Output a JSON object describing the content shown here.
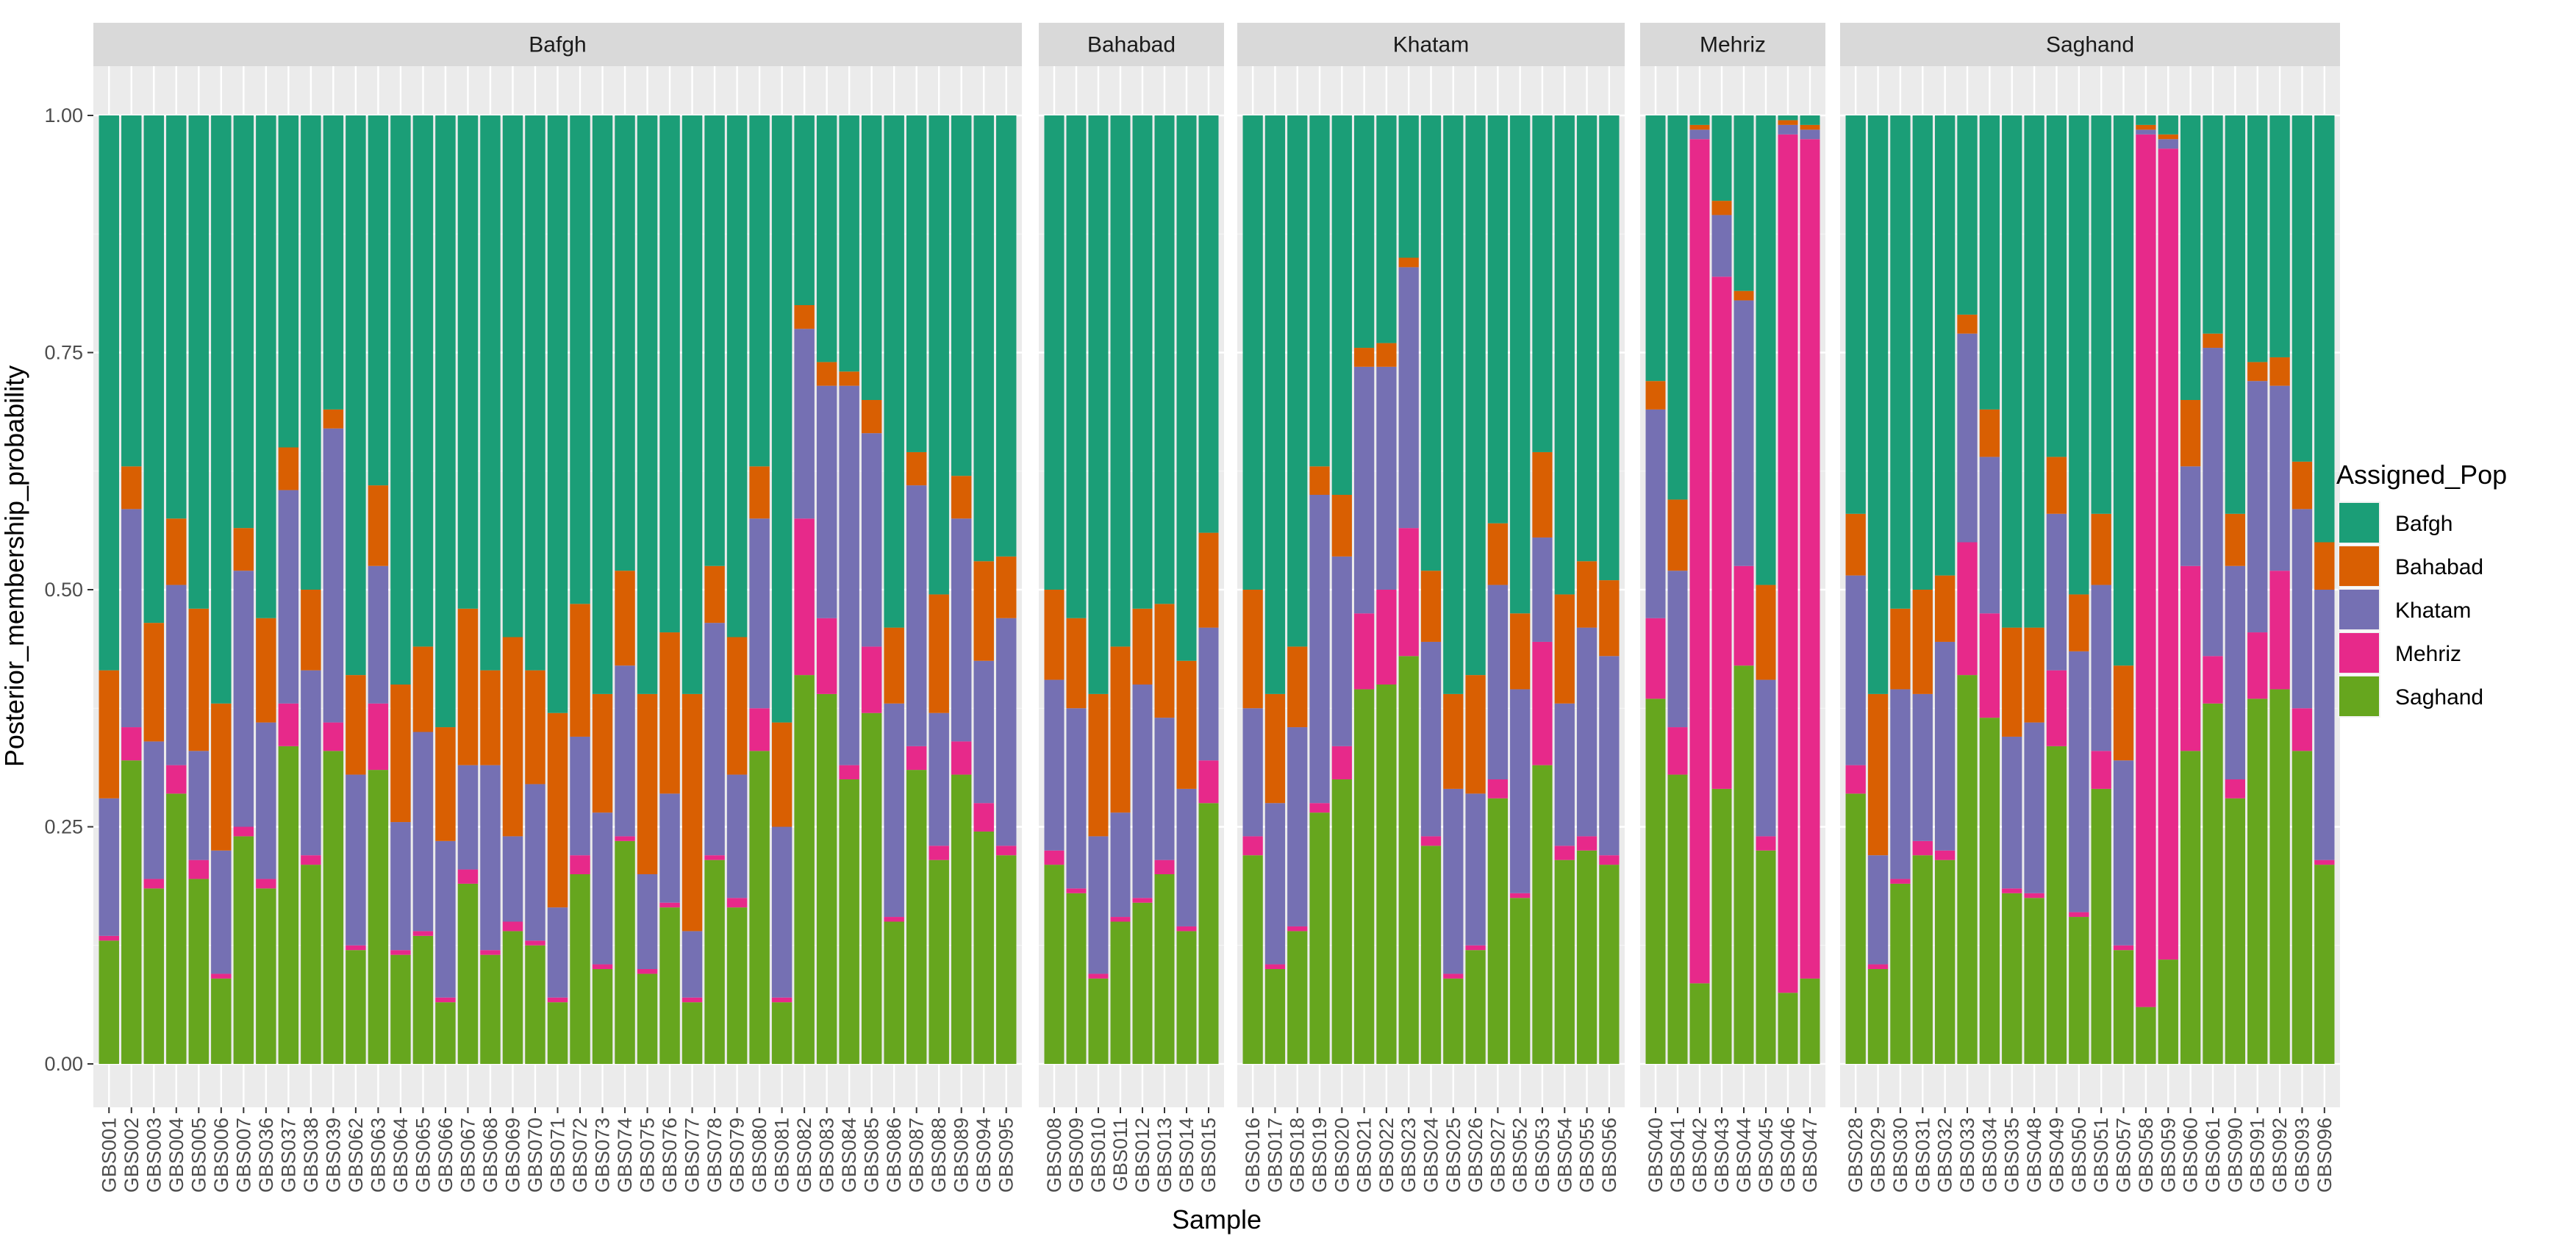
{
  "chart_data": {
    "type": "bar",
    "stacked": true,
    "faceted": true,
    "xlabel": "Sample",
    "ylabel": "Posterior_membership_probability",
    "ylim": [
      0,
      1
    ],
    "yticks": [
      "0.00",
      "0.25",
      "0.50",
      "0.75",
      "1.00"
    ],
    "grid": true,
    "legend": {
      "title": "Assigned_Pop",
      "position": "right",
      "entries": [
        "Bafgh",
        "Bahabad",
        "Khatam",
        "Mehriz",
        "Saghand"
      ]
    },
    "colors": {
      "Bafgh": "#1b9e77",
      "Bahabad": "#d95f02",
      "Khatam": "#7570b3",
      "Mehriz": "#e7298a",
      "Saghand": "#66a61e"
    },
    "stack_order_bottom_to_top": [
      "Saghand",
      "Mehriz",
      "Khatam",
      "Bahabad",
      "Bafgh"
    ],
    "value_columns": [
      "Saghand",
      "Mehriz",
      "Khatam",
      "Bahabad",
      "Bafgh"
    ],
    "facets": [
      {
        "name": "Bafgh",
        "samples": [
          [
            "GBS001",
            0.13,
            0.005,
            0.145,
            0.135,
            0.585
          ],
          [
            "GBS002",
            0.32,
            0.035,
            0.23,
            0.045,
            0.37
          ],
          [
            "GBS003",
            0.185,
            0.01,
            0.145,
            0.125,
            0.535
          ],
          [
            "GBS004",
            0.285,
            0.03,
            0.19,
            0.07,
            0.425
          ],
          [
            "GBS005",
            0.195,
            0.02,
            0.115,
            0.15,
            0.52
          ],
          [
            "GBS006",
            0.09,
            0.005,
            0.13,
            0.155,
            0.62
          ],
          [
            "GBS007",
            0.24,
            0.01,
            0.27,
            0.045,
            0.435
          ],
          [
            "GBS036",
            0.185,
            0.01,
            0.165,
            0.11,
            0.53
          ],
          [
            "GBS037",
            0.335,
            0.045,
            0.225,
            0.045,
            0.35
          ],
          [
            "GBS038",
            0.21,
            0.01,
            0.195,
            0.085,
            0.5
          ],
          [
            "GBS039",
            0.33,
            0.03,
            0.31,
            0.02,
            0.31
          ],
          [
            "GBS062",
            0.12,
            0.005,
            0.18,
            0.105,
            0.59
          ],
          [
            "GBS063",
            0.31,
            0.07,
            0.145,
            0.085,
            0.39
          ],
          [
            "GBS064",
            0.115,
            0.005,
            0.135,
            0.145,
            0.6
          ],
          [
            "GBS065",
            0.135,
            0.005,
            0.21,
            0.09,
            0.56
          ],
          [
            "GBS066",
            0.065,
            0.005,
            0.165,
            0.12,
            0.645
          ],
          [
            "GBS067",
            0.19,
            0.015,
            0.11,
            0.165,
            0.52
          ],
          [
            "GBS068",
            0.115,
            0.005,
            0.195,
            0.1,
            0.585
          ],
          [
            "GBS069",
            0.14,
            0.01,
            0.09,
            0.21,
            0.55
          ],
          [
            "GBS070",
            0.125,
            0.005,
            0.165,
            0.12,
            0.585
          ],
          [
            "GBS071",
            0.065,
            0.005,
            0.095,
            0.205,
            0.63
          ],
          [
            "GBS072",
            0.2,
            0.02,
            0.125,
            0.14,
            0.515
          ],
          [
            "GBS073",
            0.1,
            0.005,
            0.16,
            0.125,
            0.61
          ],
          [
            "GBS074",
            0.235,
            0.005,
            0.18,
            0.1,
            0.48
          ],
          [
            "GBS075",
            0.095,
            0.005,
            0.1,
            0.19,
            0.61
          ],
          [
            "GBS076",
            0.165,
            0.005,
            0.115,
            0.17,
            0.545
          ],
          [
            "GBS077",
            0.065,
            0.005,
            0.07,
            0.25,
            0.61
          ],
          [
            "GBS078",
            0.215,
            0.005,
            0.245,
            0.06,
            0.475
          ],
          [
            "GBS079",
            0.165,
            0.01,
            0.13,
            0.145,
            0.55
          ],
          [
            "GBS080",
            0.33,
            0.045,
            0.2,
            0.055,
            0.37
          ],
          [
            "GBS081",
            0.065,
            0.005,
            0.18,
            0.11,
            0.64
          ],
          [
            "GBS082",
            0.41,
            0.165,
            0.2,
            0.025,
            0.2
          ],
          [
            "GBS083",
            0.39,
            0.08,
            0.245,
            0.025,
            0.26
          ],
          [
            "GBS084",
            0.3,
            0.015,
            0.4,
            0.015,
            0.27
          ],
          [
            "GBS085",
            0.37,
            0.07,
            0.225,
            0.035,
            0.3
          ],
          [
            "GBS086",
            0.15,
            0.005,
            0.225,
            0.08,
            0.54
          ],
          [
            "GBS087",
            0.31,
            0.025,
            0.275,
            0.035,
            0.355
          ],
          [
            "GBS088",
            0.215,
            0.015,
            0.14,
            0.125,
            0.505
          ],
          [
            "GBS089",
            0.305,
            0.035,
            0.235,
            0.045,
            0.38
          ],
          [
            "GBS094",
            0.245,
            0.03,
            0.15,
            0.105,
            0.47
          ],
          [
            "GBS095",
            0.22,
            0.01,
            0.24,
            0.065,
            0.465
          ]
        ]
      },
      {
        "name": "Bahabad",
        "samples": [
          [
            "GBS008",
            0.21,
            0.015,
            0.18,
            0.095,
            0.5
          ],
          [
            "GBS009",
            0.18,
            0.005,
            0.19,
            0.095,
            0.53
          ],
          [
            "GBS010",
            0.09,
            0.005,
            0.145,
            0.15,
            0.61
          ],
          [
            "GBS011",
            0.15,
            0.005,
            0.11,
            0.175,
            0.56
          ],
          [
            "GBS012",
            0.17,
            0.005,
            0.225,
            0.08,
            0.52
          ],
          [
            "GBS013",
            0.2,
            0.015,
            0.15,
            0.12,
            0.515
          ],
          [
            "GBS014",
            0.14,
            0.005,
            0.145,
            0.135,
            0.575
          ],
          [
            "GBS015",
            0.275,
            0.045,
            0.14,
            0.1,
            0.44
          ]
        ]
      },
      {
        "name": "Khatam",
        "samples": [
          [
            "GBS016",
            0.22,
            0.02,
            0.135,
            0.125,
            0.5
          ],
          [
            "GBS017",
            0.1,
            0.005,
            0.17,
            0.115,
            0.61
          ],
          [
            "GBS018",
            0.14,
            0.005,
            0.21,
            0.085,
            0.56
          ],
          [
            "GBS019",
            0.265,
            0.01,
            0.325,
            0.03,
            0.37
          ],
          [
            "GBS020",
            0.3,
            0.035,
            0.2,
            0.065,
            0.4
          ],
          [
            "GBS021",
            0.395,
            0.08,
            0.26,
            0.02,
            0.245
          ],
          [
            "GBS022",
            0.4,
            0.1,
            0.235,
            0.025,
            0.24
          ],
          [
            "GBS023",
            0.43,
            0.135,
            0.275,
            0.01,
            0.15
          ],
          [
            "GBS024",
            0.23,
            0.01,
            0.205,
            0.075,
            0.48
          ],
          [
            "GBS025",
            0.09,
            0.005,
            0.195,
            0.1,
            0.61
          ],
          [
            "GBS026",
            0.12,
            0.005,
            0.16,
            0.125,
            0.59
          ],
          [
            "GBS027",
            0.28,
            0.02,
            0.205,
            0.065,
            0.43
          ],
          [
            "GBS052",
            0.175,
            0.005,
            0.215,
            0.08,
            0.525
          ],
          [
            "GBS053",
            0.315,
            0.13,
            0.11,
            0.09,
            0.355
          ],
          [
            "GBS054",
            0.215,
            0.015,
            0.15,
            0.115,
            0.505
          ],
          [
            "GBS055",
            0.225,
            0.015,
            0.22,
            0.07,
            0.47
          ],
          [
            "GBS056",
            0.21,
            0.01,
            0.21,
            0.08,
            0.49
          ]
        ]
      },
      {
        "name": "Mehriz",
        "samples": [
          [
            "GBS040",
            0.385,
            0.085,
            0.22,
            0.03,
            0.28
          ],
          [
            "GBS041",
            0.305,
            0.05,
            0.165,
            0.075,
            0.405
          ],
          [
            "GBS042",
            0.085,
            0.89,
            0.01,
            0.005,
            0.01
          ],
          [
            "GBS043",
            0.29,
            0.54,
            0.065,
            0.015,
            0.09
          ],
          [
            "GBS044",
            0.42,
            0.105,
            0.28,
            0.01,
            0.185
          ],
          [
            "GBS045",
            0.225,
            0.015,
            0.165,
            0.1,
            0.495
          ],
          [
            "GBS046",
            0.075,
            0.905,
            0.01,
            0.005,
            0.005
          ],
          [
            "GBS047",
            0.09,
            0.885,
            0.01,
            0.005,
            0.01
          ]
        ]
      },
      {
        "name": "Saghand",
        "samples": [
          [
            "GBS028",
            0.285,
            0.03,
            0.2,
            0.065,
            0.42
          ],
          [
            "GBS029",
            0.1,
            0.005,
            0.115,
            0.17,
            0.61
          ],
          [
            "GBS030",
            0.19,
            0.005,
            0.2,
            0.085,
            0.52
          ],
          [
            "GBS031",
            0.22,
            0.015,
            0.155,
            0.11,
            0.5
          ],
          [
            "GBS032",
            0.215,
            0.01,
            0.22,
            0.07,
            0.485
          ],
          [
            "GBS033",
            0.41,
            0.14,
            0.22,
            0.02,
            0.21
          ],
          [
            "GBS034",
            0.365,
            0.11,
            0.165,
            0.05,
            0.31
          ],
          [
            "GBS035",
            0.18,
            0.005,
            0.16,
            0.115,
            0.54
          ],
          [
            "GBS048",
            0.175,
            0.005,
            0.18,
            0.1,
            0.54
          ],
          [
            "GBS049",
            0.335,
            0.08,
            0.165,
            0.06,
            0.36
          ],
          [
            "GBS050",
            0.155,
            0.005,
            0.275,
            0.06,
            0.505
          ],
          [
            "GBS051",
            0.29,
            0.04,
            0.175,
            0.075,
            0.42
          ],
          [
            "GBS057",
            0.12,
            0.005,
            0.195,
            0.1,
            0.58
          ],
          [
            "GBS058",
            0.06,
            0.92,
            0.005,
            0.005,
            0.01
          ],
          [
            "GBS059",
            0.11,
            0.855,
            0.01,
            0.005,
            0.02
          ],
          [
            "GBS060",
            0.33,
            0.195,
            0.105,
            0.07,
            0.3
          ],
          [
            "GBS061",
            0.38,
            0.05,
            0.325,
            0.015,
            0.23
          ],
          [
            "GBS090",
            0.28,
            0.02,
            0.225,
            0.055,
            0.42
          ],
          [
            "GBS091",
            0.385,
            0.07,
            0.265,
            0.02,
            0.26
          ],
          [
            "GBS092",
            0.395,
            0.125,
            0.195,
            0.03,
            0.255
          ],
          [
            "GBS093",
            0.33,
            0.045,
            0.21,
            0.05,
            0.365
          ],
          [
            "GBS096",
            0.21,
            0.005,
            0.285,
            0.05,
            0.45
          ]
        ]
      }
    ]
  }
}
